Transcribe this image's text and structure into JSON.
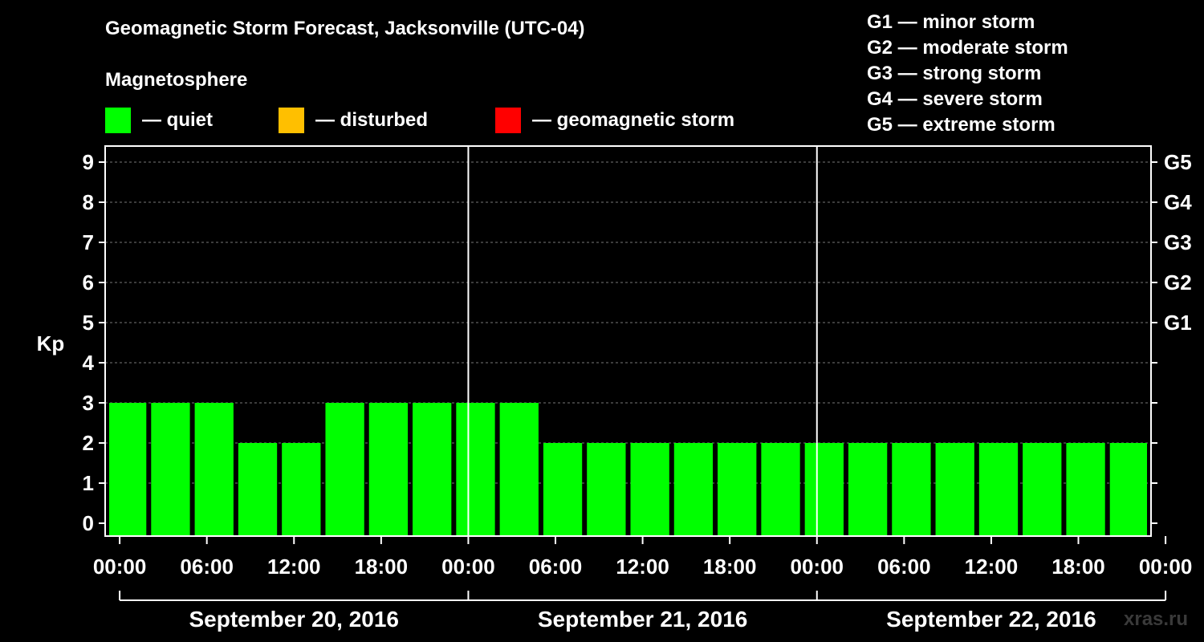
{
  "header": {
    "title": "Geomagnetic Storm Forecast, Jacksonville (UTC-04)",
    "magnetosphere_label": "Magnetosphere"
  },
  "legend": [
    {
      "label": "— quiet",
      "color": "#00ff00"
    },
    {
      "label": "— disturbed",
      "color": "#ffbf00"
    },
    {
      "label": "— geomagnetic storm",
      "color": "#ff0000"
    }
  ],
  "g_scale": [
    "G1 — minor storm",
    "G2 — moderate storm",
    "G3 — strong storm",
    "G4 — severe storm",
    "G5 — extreme storm"
  ],
  "watermark": "xras.ru",
  "chart_data": {
    "type": "bar",
    "ylabel": "Kp",
    "ylim": [
      0,
      9
    ],
    "y_ticks": [
      "0",
      "1",
      "2",
      "3",
      "4",
      "5",
      "6",
      "7",
      "8",
      "9"
    ],
    "right_ticks": [
      {
        "kp": 5,
        "label": "G1"
      },
      {
        "kp": 6,
        "label": "G2"
      },
      {
        "kp": 7,
        "label": "G3"
      },
      {
        "kp": 8,
        "label": "G4"
      },
      {
        "kp": 9,
        "label": "G5"
      }
    ],
    "x_ticks": [
      "00:00",
      "06:00",
      "12:00",
      "18:00",
      "00:00",
      "06:00",
      "12:00",
      "18:00",
      "00:00",
      "06:00",
      "12:00",
      "18:00",
      "00:00"
    ],
    "days": [
      "September 20, 2016",
      "September 21, 2016",
      "September 22, 2016"
    ],
    "x_start_hours": -1,
    "x_end_hours": 71,
    "bar_interval_hours": 3,
    "values": [
      3,
      3,
      3,
      2,
      2,
      3,
      3,
      3,
      3,
      3,
      2,
      2,
      2,
      2,
      2,
      2,
      2,
      2,
      2,
      2,
      2,
      2,
      2,
      2
    ],
    "bar_color": "#00ff00",
    "grid": true
  }
}
